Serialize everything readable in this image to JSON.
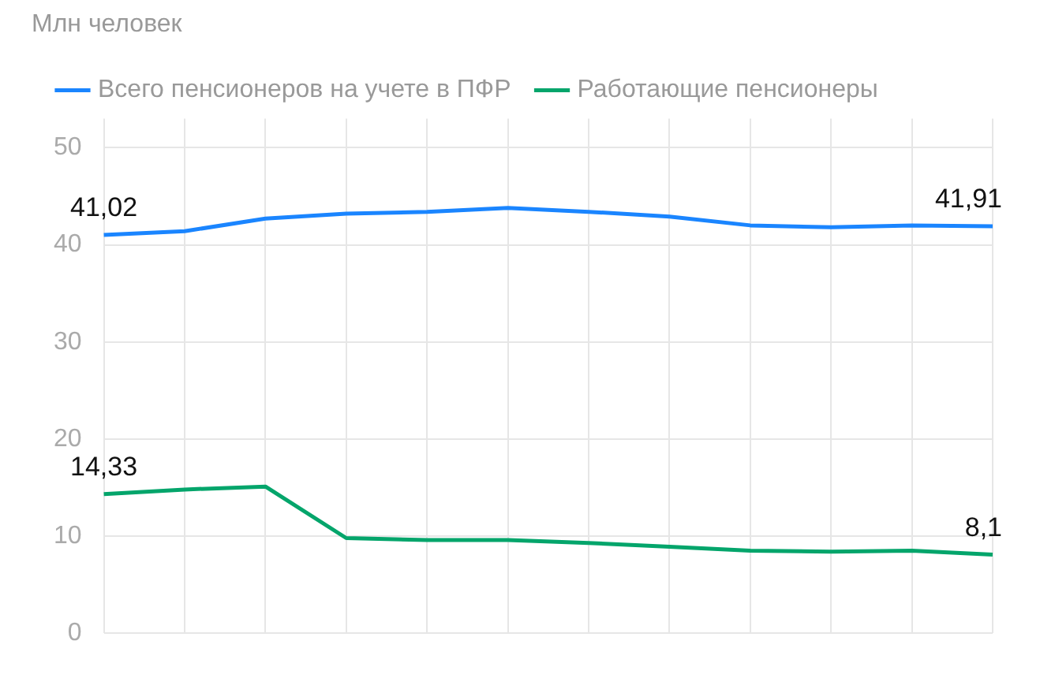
{
  "chart_data": {
    "type": "line",
    "title": "Млн человек",
    "legend": "top left",
    "grid": true,
    "marker": "none",
    "line_style": "solid",
    "categories": [
      null,
      null,
      null,
      null,
      null,
      null,
      null,
      null,
      null,
      null,
      null,
      null
    ],
    "ylim": [
      0,
      53
    ],
    "yticks": [
      0,
      10,
      20,
      30,
      40,
      50
    ],
    "series": [
      {
        "name": "Всего пенсионеров на учете в ПФР",
        "color": "#1a85ff",
        "values": [
          41.02,
          41.4,
          42.7,
          43.2,
          43.4,
          43.8,
          43.4,
          42.9,
          42.0,
          41.8,
          42.0,
          41.91
        ],
        "value_labels": [
          "41,02",
          null,
          null,
          null,
          null,
          null,
          null,
          null,
          null,
          null,
          null,
          "41,91"
        ]
      },
      {
        "name": "Работающие пенсионеры",
        "color": "#04a56b",
        "values": [
          14.33,
          14.8,
          15.1,
          9.8,
          9.6,
          9.6,
          9.3,
          8.9,
          8.5,
          8.4,
          8.5,
          8.1
        ],
        "value_labels": [
          "14,33",
          null,
          null,
          null,
          null,
          null,
          null,
          null,
          null,
          null,
          null,
          "8,1"
        ]
      }
    ]
  }
}
